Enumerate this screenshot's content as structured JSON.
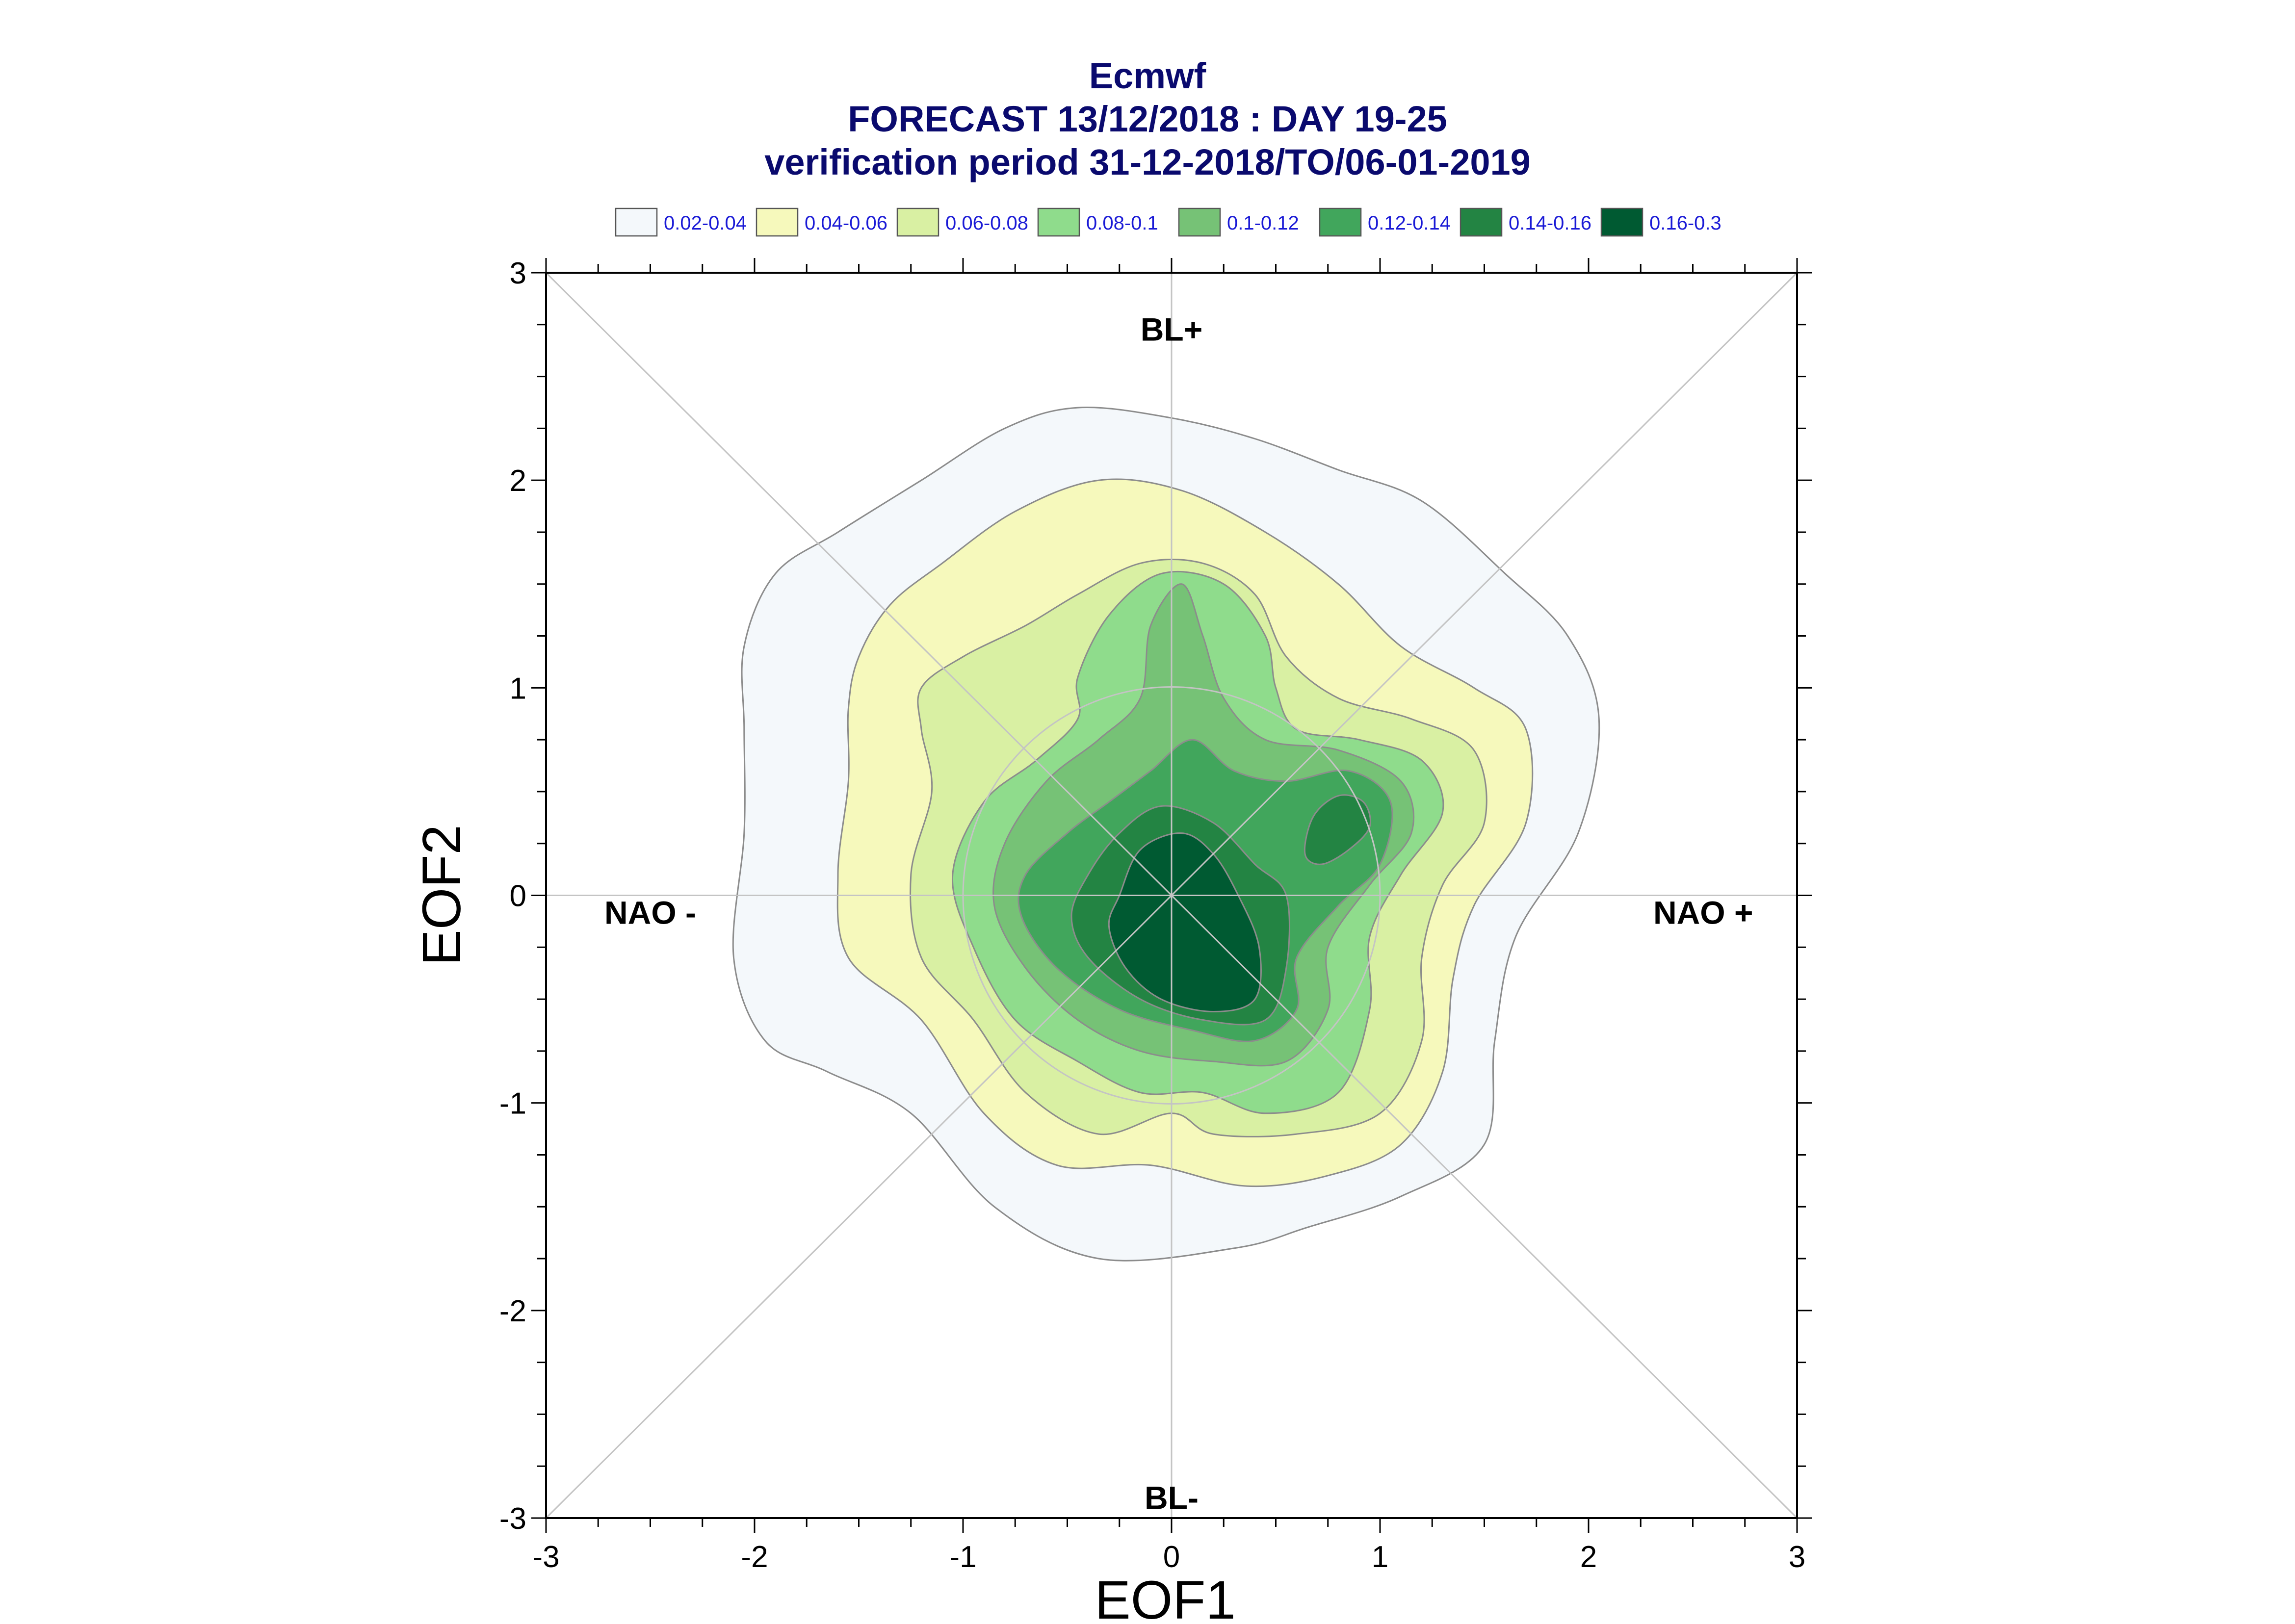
{
  "chart_data": {
    "type": "contour",
    "title": [
      "Ecmwf",
      "FORECAST 13/12/2018 : DAY 19-25",
      "verification period 31-12-2018/TO/06-01-2019"
    ],
    "xlabel": "EOF1",
    "ylabel": "EOF2",
    "xlim": [
      -3,
      3
    ],
    "ylim": [
      -3,
      3
    ],
    "xticks": [
      "-3",
      "-2",
      "-1",
      "0",
      "1",
      "2",
      "3"
    ],
    "yticks": [
      "-3",
      "-2",
      "-1",
      "0",
      "1",
      "2",
      "3"
    ],
    "legend_position": "top",
    "legend": [
      {
        "label": "0.02-0.04",
        "color": "#f4f8fb"
      },
      {
        "label": "0.04-0.06",
        "color": "#f6f9bc"
      },
      {
        "label": "0.06-0.08",
        "color": "#d9f0a3"
      },
      {
        "label": "0.08-0.1",
        "color": "#8fdc8c"
      },
      {
        "label": "0.1-0.12",
        "color": "#76c276"
      },
      {
        "label": "0.12-0.14",
        "color": "#41a65c"
      },
      {
        "label": "0.14-0.16",
        "color": "#238443"
      },
      {
        "label": "0.16-0.3",
        "color": "#005a32"
      }
    ],
    "regimes": [
      {
        "label": "BL+",
        "x": 0,
        "y": 2.73
      },
      {
        "label": "BL-",
        "x": 0,
        "y": -2.9
      },
      {
        "label": "NAO -",
        "x": -2.5,
        "y": -0.08
      },
      {
        "label": "NAO +",
        "x": 2.55,
        "y": -0.08
      }
    ],
    "contours": [
      {
        "level": "0.02-0.04",
        "points": [
          [
            -2.05,
            1.2
          ],
          [
            -1.9,
            1.55
          ],
          [
            -1.6,
            1.75
          ],
          [
            -1.2,
            2.0
          ],
          [
            -0.8,
            2.25
          ],
          [
            -0.45,
            2.35
          ],
          [
            0,
            2.3
          ],
          [
            0.4,
            2.2
          ],
          [
            0.8,
            2.05
          ],
          [
            1.2,
            1.9
          ],
          [
            1.6,
            1.55
          ],
          [
            1.9,
            1.25
          ],
          [
            2.05,
            0.85
          ],
          [
            1.95,
            0.3
          ],
          [
            1.65,
            -0.2
          ],
          [
            1.55,
            -0.7
          ],
          [
            1.5,
            -1.2
          ],
          [
            1.1,
            -1.45
          ],
          [
            0.65,
            -1.6
          ],
          [
            0.3,
            -1.7
          ],
          [
            -0.35,
            -1.75
          ],
          [
            -0.85,
            -1.5
          ],
          [
            -1.25,
            -1.05
          ],
          [
            -1.65,
            -0.85
          ],
          [
            -1.95,
            -0.7
          ],
          [
            -2.1,
            -0.3
          ],
          [
            -2.05,
            0.3
          ],
          [
            -2.05,
            0.8
          ]
        ]
      },
      {
        "level": "0.04-0.06",
        "points": [
          [
            -1.5,
            1.15
          ],
          [
            -1.35,
            1.4
          ],
          [
            -1.1,
            1.6
          ],
          [
            -0.75,
            1.85
          ],
          [
            -0.35,
            2.0
          ],
          [
            0.05,
            1.95
          ],
          [
            0.45,
            1.75
          ],
          [
            0.8,
            1.5
          ],
          [
            1.1,
            1.2
          ],
          [
            1.45,
            1.0
          ],
          [
            1.7,
            0.8
          ],
          [
            1.7,
            0.35
          ],
          [
            1.45,
            -0.05
          ],
          [
            1.35,
            -0.4
          ],
          [
            1.3,
            -0.85
          ],
          [
            1.1,
            -1.2
          ],
          [
            0.75,
            -1.35
          ],
          [
            0.35,
            -1.4
          ],
          [
            -0.1,
            -1.3
          ],
          [
            -0.55,
            -1.3
          ],
          [
            -0.9,
            -1.05
          ],
          [
            -1.2,
            -0.6
          ],
          [
            -1.55,
            -0.3
          ],
          [
            -1.6,
            0.1
          ],
          [
            -1.55,
            0.55
          ],
          [
            -1.55,
            0.9
          ]
        ]
      },
      {
        "level": "0.06-0.08",
        "points": [
          [
            -1.2,
            1.0
          ],
          [
            -1.0,
            1.15
          ],
          [
            -0.7,
            1.3
          ],
          [
            -0.45,
            1.45
          ],
          [
            -0.15,
            1.6
          ],
          [
            0.15,
            1.6
          ],
          [
            0.4,
            1.45
          ],
          [
            0.55,
            1.15
          ],
          [
            0.8,
            0.95
          ],
          [
            1.15,
            0.85
          ],
          [
            1.45,
            0.7
          ],
          [
            1.5,
            0.35
          ],
          [
            1.3,
            0.05
          ],
          [
            1.2,
            -0.3
          ],
          [
            1.2,
            -0.7
          ],
          [
            1.0,
            -1.05
          ],
          [
            0.6,
            -1.15
          ],
          [
            0.2,
            -1.15
          ],
          [
            0.0,
            -1.05
          ],
          [
            -0.35,
            -1.15
          ],
          [
            -0.7,
            -0.95
          ],
          [
            -0.95,
            -0.6
          ],
          [
            -1.2,
            -0.3
          ],
          [
            -1.25,
            0.1
          ],
          [
            -1.15,
            0.5
          ],
          [
            -1.2,
            0.8
          ]
        ]
      },
      {
        "level": "0.08-0.1",
        "points": [
          [
            -0.45,
            1.05
          ],
          [
            -0.3,
            1.35
          ],
          [
            -0.05,
            1.55
          ],
          [
            0.25,
            1.5
          ],
          [
            0.45,
            1.25
          ],
          [
            0.5,
            1.0
          ],
          [
            0.6,
            0.8
          ],
          [
            0.9,
            0.75
          ],
          [
            1.2,
            0.65
          ],
          [
            1.3,
            0.4
          ],
          [
            1.1,
            0.1
          ],
          [
            0.95,
            -0.2
          ],
          [
            0.95,
            -0.55
          ],
          [
            0.8,
            -0.95
          ],
          [
            0.45,
            -1.05
          ],
          [
            0.15,
            -0.95
          ],
          [
            -0.15,
            -0.95
          ],
          [
            -0.45,
            -0.8
          ],
          [
            -0.75,
            -0.6
          ],
          [
            -0.95,
            -0.25
          ],
          [
            -1.05,
            0.1
          ],
          [
            -0.9,
            0.45
          ],
          [
            -0.65,
            0.65
          ],
          [
            -0.45,
            0.85
          ]
        ]
      },
      {
        "level": "0.1-0.12",
        "points": [
          [
            -0.6,
            0.55
          ],
          [
            -0.35,
            0.75
          ],
          [
            -0.15,
            0.95
          ],
          [
            -0.1,
            1.3
          ],
          [
            0.05,
            1.5
          ],
          [
            0.15,
            1.25
          ],
          [
            0.25,
            0.95
          ],
          [
            0.45,
            0.75
          ],
          [
            0.8,
            0.7
          ],
          [
            1.1,
            0.55
          ],
          [
            1.15,
            0.3
          ],
          [
            0.95,
            0.05
          ],
          [
            0.75,
            -0.25
          ],
          [
            0.75,
            -0.55
          ],
          [
            0.55,
            -0.8
          ],
          [
            0.2,
            -0.8
          ],
          [
            -0.15,
            -0.75
          ],
          [
            -0.45,
            -0.6
          ],
          [
            -0.7,
            -0.35
          ],
          [
            -0.85,
            -0.05
          ],
          [
            -0.8,
            0.25
          ]
        ]
      },
      {
        "level": "0.12-0.14",
        "points": [
          [
            -0.5,
            0.3
          ],
          [
            -0.3,
            0.45
          ],
          [
            -0.1,
            0.6
          ],
          [
            0.1,
            0.75
          ],
          [
            0.3,
            0.6
          ],
          [
            0.55,
            0.55
          ],
          [
            0.85,
            0.6
          ],
          [
            1.05,
            0.45
          ],
          [
            1.0,
            0.15
          ],
          [
            0.8,
            -0.05
          ],
          [
            0.6,
            -0.3
          ],
          [
            0.6,
            -0.55
          ],
          [
            0.4,
            -0.7
          ],
          [
            0.1,
            -0.65
          ],
          [
            -0.25,
            -0.55
          ],
          [
            -0.55,
            -0.35
          ],
          [
            -0.72,
            -0.1
          ],
          [
            -0.7,
            0.1
          ]
        ]
      },
      {
        "level": "0.14-0.16",
        "points": [
          [
            -0.4,
            0.1
          ],
          [
            -0.25,
            0.3
          ],
          [
            -0.05,
            0.43
          ],
          [
            0.2,
            0.35
          ],
          [
            0.4,
            0.15
          ],
          [
            0.55,
            0.0
          ],
          [
            0.55,
            -0.35
          ],
          [
            0.45,
            -0.6
          ],
          [
            0.15,
            -0.6
          ],
          [
            -0.15,
            -0.5
          ],
          [
            -0.4,
            -0.3
          ],
          [
            -0.48,
            -0.1
          ]
        ]
      },
      {
        "level": "0.14-0.16",
        "points": [
          [
            0.64,
            0.2
          ],
          [
            0.68,
            0.38
          ],
          [
            0.8,
            0.48
          ],
          [
            0.92,
            0.45
          ],
          [
            0.95,
            0.33
          ],
          [
            0.85,
            0.22
          ],
          [
            0.72,
            0.15
          ]
        ]
      },
      {
        "level": "0.16-0.3",
        "points": [
          [
            -0.25,
            0.0
          ],
          [
            -0.15,
            0.22
          ],
          [
            0.05,
            0.3
          ],
          [
            0.2,
            0.2
          ],
          [
            0.32,
            0.0
          ],
          [
            0.42,
            -0.25
          ],
          [
            0.4,
            -0.5
          ],
          [
            0.2,
            -0.56
          ],
          [
            -0.05,
            -0.5
          ],
          [
            -0.22,
            -0.35
          ],
          [
            -0.3,
            -0.15
          ]
        ]
      }
    ]
  }
}
